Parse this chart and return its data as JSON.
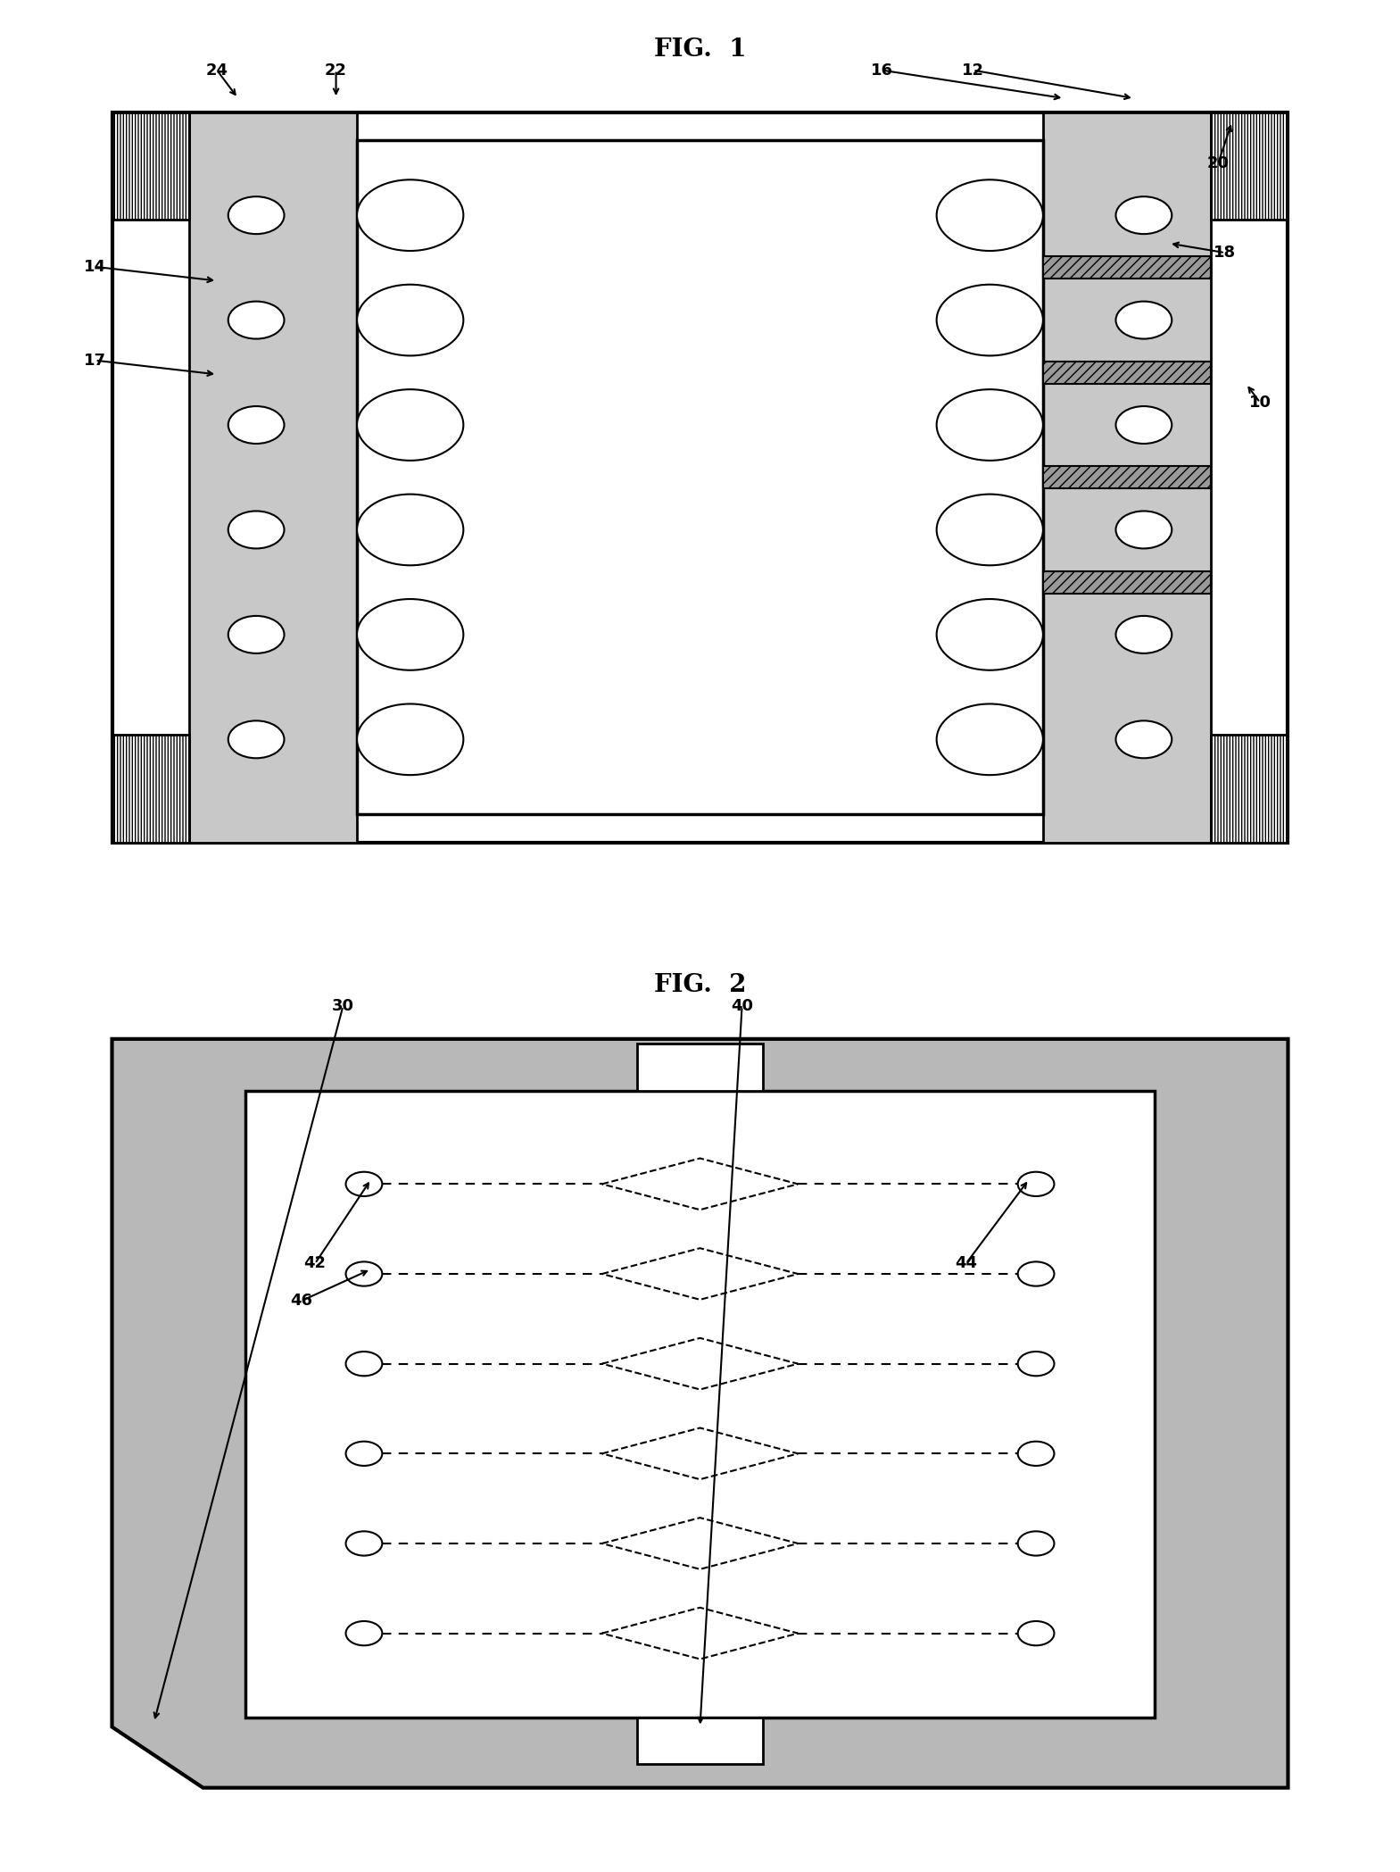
{
  "fig1_title": "FIG.  1",
  "fig2_title": "FIG.  2",
  "bg_color": "#ffffff",
  "stipple_color": "#c8c8c8",
  "hatch_color": "#aaaaaa",
  "fig2_outer_color": "#b8b8b8"
}
